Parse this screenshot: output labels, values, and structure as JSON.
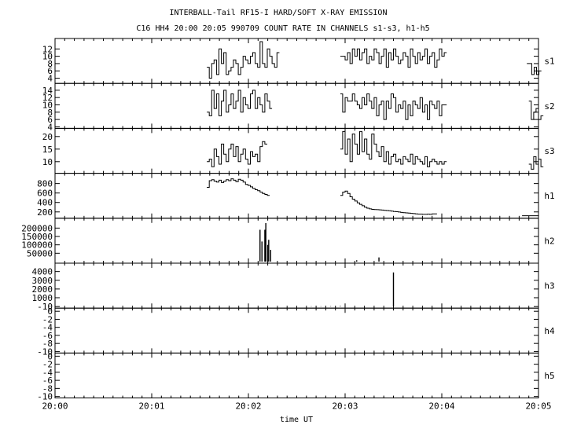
{
  "title_line1": "INTERBALL-Tail RF15-I HARD/SOFT X-RAY EMISSION",
  "title_line2": "C16 HH4 20:00 20:05 990709  COUNT RATE IN CHANNELS s1-s3, h1-h5",
  "xlabel": "time UT",
  "x_ticks": [
    "20:00",
    "20:01",
    "20:02",
    "20:03",
    "20:04",
    "20:05"
  ],
  "chart_data": [
    {
      "type": "line",
      "name": "s1",
      "ylim": [
        3,
        14
      ],
      "y_ticks": [
        4,
        6,
        8,
        10,
        12
      ],
      "segments": [
        {
          "t0": 1.57,
          "dt": 0.025,
          "values": [
            7,
            4,
            8,
            9,
            5,
            12,
            8,
            11,
            5,
            6,
            7,
            9,
            8,
            5,
            7,
            10,
            9,
            8,
            10,
            11,
            8,
            7,
            14,
            8,
            7,
            12,
            10,
            8,
            7,
            11
          ]
        },
        {
          "t0": 2.95,
          "dt": 0.025,
          "values": [
            10,
            10,
            9,
            11,
            8,
            12,
            10,
            12,
            9,
            11,
            12,
            8,
            10,
            9,
            12,
            11,
            8,
            10,
            12,
            7,
            11,
            9,
            12,
            10,
            8,
            9,
            11,
            10,
            7,
            12,
            10,
            8,
            11,
            9,
            10,
            12,
            8,
            10,
            11,
            7,
            9,
            12,
            10,
            11
          ]
        },
        {
          "t0": 4.88,
          "dt": 0.025,
          "values": [
            8,
            8,
            5,
            7,
            5,
            6
          ]
        }
      ]
    },
    {
      "type": "line",
      "name": "s2",
      "ylim": [
        4,
        15
      ],
      "y_ticks": [
        4,
        6,
        8,
        10,
        12,
        14
      ],
      "segments": [
        {
          "t0": 1.57,
          "dt": 0.025,
          "values": [
            8,
            7,
            14,
            9,
            13,
            7,
            11,
            14,
            8,
            10,
            13,
            9,
            11,
            14,
            8,
            12,
            10,
            9,
            13,
            14,
            9,
            12,
            10,
            8,
            13,
            11,
            9
          ]
        },
        {
          "t0": 2.95,
          "dt": 0.025,
          "values": [
            13,
            8,
            12,
            11,
            11,
            13,
            11,
            10,
            9,
            12,
            10,
            13,
            11,
            9,
            12,
            7,
            10,
            11,
            6,
            11,
            9,
            13,
            12,
            8,
            10,
            9,
            11,
            6,
            10,
            7,
            11,
            10,
            9,
            12,
            8,
            10,
            6,
            11,
            10,
            9,
            11,
            7,
            10,
            10
          ]
        },
        {
          "t0": 4.9,
          "dt": 0.025,
          "values": [
            11,
            6,
            8,
            9,
            6,
            7
          ]
        }
      ]
    },
    {
      "type": "line",
      "name": "s3",
      "ylim": [
        6,
        22
      ],
      "y_ticks": [
        10,
        15,
        20
      ],
      "segments": [
        {
          "t0": 1.57,
          "dt": 0.025,
          "values": [
            10,
            11,
            8,
            15,
            12,
            9,
            17,
            13,
            10,
            15,
            17,
            12,
            16,
            10,
            13,
            15,
            11,
            9,
            14,
            12,
            13,
            10,
            16,
            18,
            17
          ]
        },
        {
          "t0": 2.95,
          "dt": 0.025,
          "values": [
            15,
            22,
            13,
            19,
            10,
            21,
            17,
            13,
            22,
            14,
            19,
            13,
            11,
            21,
            17,
            14,
            12,
            16,
            10,
            14,
            9,
            12,
            13,
            10,
            11,
            9,
            12,
            11,
            10,
            13,
            9,
            12,
            11,
            10,
            9,
            12,
            8,
            10,
            11,
            10,
            9,
            10,
            9,
            10
          ]
        },
        {
          "t0": 4.9,
          "dt": 0.025,
          "values": [
            9,
            7,
            12,
            9,
            11,
            8
          ]
        }
      ]
    },
    {
      "type": "line",
      "name": "h1",
      "ylim": [
        100,
        950
      ],
      "y_ticks": [
        200,
        400,
        600,
        800
      ],
      "segments": [
        {
          "t0": 1.57,
          "dt": 0.025,
          "values": [
            720,
            860,
            880,
            850,
            830,
            870,
            820,
            850,
            880,
            860,
            900,
            870,
            840,
            890,
            870,
            830,
            780,
            760,
            730,
            700,
            670,
            650,
            620,
            590,
            570,
            550
          ]
        },
        {
          "t0": 2.95,
          "dt": 0.025,
          "values": [
            550,
            620,
            640,
            590,
            520,
            470,
            430,
            390,
            360,
            330,
            300,
            280,
            265,
            255,
            250,
            248,
            245,
            240,
            235,
            230,
            225,
            218,
            210,
            205,
            198,
            190,
            185,
            180,
            175,
            170,
            165,
            160,
            155,
            155,
            150,
            152,
            155,
            150,
            158,
            160
          ]
        },
        {
          "t0": 4.83,
          "dt": 0.025,
          "values": [
            120,
            120,
            120,
            120,
            120,
            120,
            120
          ]
        }
      ]
    },
    {
      "type": "bar",
      "name": "h2",
      "ylim": [
        0,
        240000
      ],
      "y_ticks": [
        50000,
        100000,
        150000,
        200000
      ],
      "points": [
        [
          2.12,
          190000
        ],
        [
          2.14,
          120000
        ],
        [
          2.17,
          190000
        ],
        [
          2.18,
          230000
        ],
        [
          2.2,
          100000
        ],
        [
          2.21,
          130000
        ],
        [
          2.23,
          70000
        ],
        [
          3.12,
          8000
        ],
        [
          3.35,
          25000
        ]
      ]
    },
    {
      "type": "bar",
      "name": "h3",
      "ylim": [
        -10,
        4600
      ],
      "y_ticks": [
        -10,
        1000,
        2000,
        3000,
        4000
      ],
      "points": [
        [
          2.65,
          20
        ],
        [
          2.7,
          30
        ],
        [
          2.75,
          20
        ],
        [
          2.8,
          40
        ],
        [
          2.85,
          30
        ],
        [
          2.9,
          20
        ],
        [
          2.95,
          50
        ],
        [
          3.0,
          30
        ],
        [
          3.5,
          3900
        ]
      ]
    },
    {
      "type": "line",
      "name": "h4",
      "ylim": [
        -10,
        0
      ],
      "y_ticks": [
        -10,
        -8,
        -6,
        -4,
        -2,
        0
      ],
      "segments": []
    },
    {
      "type": "line",
      "name": "h5",
      "ylim": [
        -10,
        0
      ],
      "y_ticks": [
        -10,
        -8,
        -6,
        -4,
        -2,
        0
      ],
      "segments": []
    }
  ]
}
